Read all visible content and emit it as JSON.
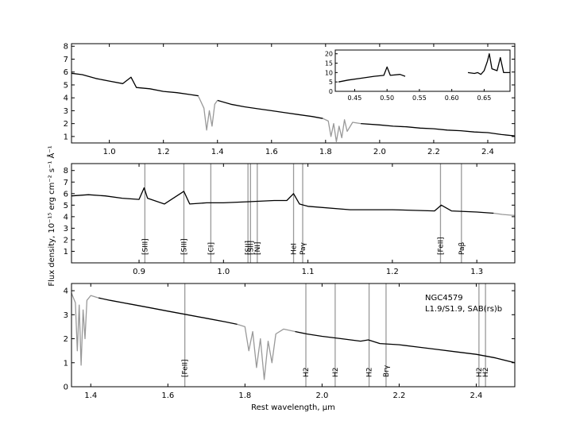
{
  "chart_data": [
    {
      "type": "line",
      "panel": "top",
      "xlim": [
        0.86,
        2.5
      ],
      "ylim": [
        0.5,
        8.2
      ],
      "xticks": [
        "1.0",
        "1.2",
        "1.4",
        "1.6",
        "1.8",
        "2.0",
        "2.2",
        "2.4"
      ],
      "yticks": [
        "1",
        "2",
        "3",
        "4",
        "5",
        "6",
        "7",
        "8"
      ],
      "series": [
        {
          "color": "#000000",
          "segments": [
            {
              "x": [
                0.86,
                0.9,
                0.95,
                1.0,
                1.05,
                1.08,
                1.1,
                1.15,
                1.2,
                1.25,
                1.3,
                1.33
              ],
              "y": [
                5.9,
                5.8,
                5.5,
                5.3,
                5.1,
                5.6,
                4.8,
                4.7,
                4.5,
                4.4,
                4.25,
                4.15
              ]
            },
            {
              "x": [
                1.4,
                1.45,
                1.5,
                1.55,
                1.6,
                1.65,
                1.7,
                1.75,
                1.79
              ],
              "y": [
                3.8,
                3.5,
                3.3,
                3.15,
                3.0,
                2.85,
                2.7,
                2.55,
                2.4
              ]
            },
            {
              "x": [
                1.93,
                2.0,
                2.05,
                2.1,
                2.15,
                2.2,
                2.25,
                2.3,
                2.35,
                2.4,
                2.45,
                2.5
              ],
              "y": [
                2.0,
                1.9,
                1.8,
                1.75,
                1.65,
                1.6,
                1.5,
                1.45,
                1.35,
                1.3,
                1.15,
                1.05
              ]
            }
          ]
        },
        {
          "color": "#999999",
          "segments": [
            {
              "x": [
                1.33,
                1.35,
                1.36,
                1.37,
                1.38,
                1.39,
                1.4
              ],
              "y": [
                4.1,
                3.2,
                1.5,
                3.0,
                1.8,
                3.5,
                3.8
              ]
            },
            {
              "x": [
                1.79,
                1.81,
                1.82,
                1.83,
                1.84,
                1.85,
                1.86,
                1.87,
                1.88,
                1.9,
                1.93
              ],
              "y": [
                2.4,
                2.2,
                1.0,
                2.0,
                0.6,
                1.8,
                0.9,
                2.3,
                1.4,
                2.1,
                2.0
              ]
            }
          ]
        }
      ],
      "inset": {
        "xlim": [
          0.42,
          0.69
        ],
        "ylim": [
          0,
          22
        ],
        "xticks": [
          "0.45",
          "0.50",
          "0.55",
          "0.60",
          "0.65"
        ],
        "yticks": [
          "0",
          "5",
          "10",
          "15",
          "20"
        ],
        "segments": [
          {
            "x": [
              0.425,
              0.44,
              0.46,
              0.48,
              0.495,
              0.5,
              0.505,
              0.52,
              0.528
            ],
            "y": [
              5,
              6,
              7,
              8,
              8.5,
              13,
              8.5,
              9,
              8
            ]
          },
          {
            "x": [
              0.625,
              0.635,
              0.64,
              0.645,
              0.65,
              0.655,
              0.658,
              0.662,
              0.67,
              0.675,
              0.68,
              0.69
            ],
            "y": [
              10,
              9.5,
              10,
              9,
              11,
              16,
              20,
              12,
              11,
              18,
              10,
              10
            ]
          }
        ]
      }
    },
    {
      "type": "line",
      "panel": "middle",
      "xlim": [
        0.82,
        1.345
      ],
      "ylim": [
        0,
        8.6
      ],
      "xticks": [
        "0.9",
        "1.0",
        "1.1",
        "1.2",
        "1.3"
      ],
      "yticks": [
        "1",
        "2",
        "3",
        "4",
        "5",
        "6",
        "7",
        "8"
      ],
      "series": [
        {
          "color": "#000000",
          "segments": [
            {
              "x": [
                0.82,
                0.84,
                0.86,
                0.88,
                0.9,
                0.906,
                0.91,
                0.93,
                0.953,
                0.96,
                0.98,
                1.0,
                1.03,
                1.06,
                1.075,
                1.083,
                1.09,
                1.1,
                1.15,
                1.2,
                1.25,
                1.258,
                1.27,
                1.3,
                1.32
              ],
              "y": [
                5.8,
                5.9,
                5.8,
                5.6,
                5.5,
                6.5,
                5.6,
                5.1,
                6.2,
                5.1,
                5.2,
                5.2,
                5.3,
                5.4,
                5.4,
                6.0,
                5.1,
                4.9,
                4.6,
                4.6,
                4.5,
                5.0,
                4.5,
                4.4,
                4.3
              ]
            }
          ]
        },
        {
          "color": "#999999",
          "segments": [
            {
              "x": [
                1.32,
                1.33,
                1.345
              ],
              "y": [
                4.3,
                4.2,
                4.1
              ]
            }
          ]
        }
      ],
      "lines": [
        {
          "x": 0.9069,
          "label": "[SIII]"
        },
        {
          "x": 0.9531,
          "label": "[SIII]"
        },
        {
          "x": 0.985,
          "label": "[CI]"
        },
        {
          "x": 1.029,
          "label": "[SII]"
        },
        {
          "x": 1.032,
          "label": "[SII]"
        },
        {
          "x": 1.04,
          "label": "[NI]"
        },
        {
          "x": 1.083,
          "label": "HeI"
        },
        {
          "x": 1.0938,
          "label": "Paγ"
        },
        {
          "x": 1.257,
          "label": "[FeII]"
        },
        {
          "x": 1.2818,
          "label": "Paβ"
        }
      ]
    },
    {
      "type": "line",
      "panel": "bottom",
      "xlim": [
        1.35,
        2.5
      ],
      "ylim": [
        0,
        4.3
      ],
      "xticks": [
        "1.4",
        "1.6",
        "1.8",
        "2.0",
        "2.2",
        "2.4"
      ],
      "yticks": [
        "0",
        "1",
        "2",
        "3",
        "4"
      ],
      "series": [
        {
          "color": "#000000",
          "segments": [
            {
              "x": [
                1.42,
                1.45,
                1.5,
                1.55,
                1.6,
                1.65,
                1.7,
                1.75,
                1.78
              ],
              "y": [
                3.7,
                3.6,
                3.45,
                3.3,
                3.15,
                3.0,
                2.85,
                2.7,
                2.6
              ]
            },
            {
              "x": [
                1.93,
                1.96,
                2.0,
                2.05,
                2.1,
                2.12,
                2.15,
                2.2,
                2.25,
                2.3,
                2.35,
                2.4,
                2.45,
                2.5
              ],
              "y": [
                2.3,
                2.2,
                2.1,
                2.0,
                1.9,
                1.95,
                1.8,
                1.75,
                1.65,
                1.55,
                1.45,
                1.35,
                1.2,
                1.0
              ]
            }
          ]
        },
        {
          "color": "#999999",
          "segments": [
            {
              "x": [
                1.35,
                1.36,
                1.365,
                1.37,
                1.375,
                1.38,
                1.385,
                1.39,
                1.4,
                1.42
              ],
              "y": [
                3.9,
                3.5,
                1.5,
                3.4,
                0.9,
                3.2,
                2.0,
                3.6,
                3.8,
                3.7
              ]
            },
            {
              "x": [
                1.78,
                1.8,
                1.81,
                1.82,
                1.83,
                1.84,
                1.85,
                1.86,
                1.87,
                1.88,
                1.9,
                1.93
              ],
              "y": [
                2.6,
                2.5,
                1.5,
                2.3,
                0.8,
                2.0,
                0.3,
                1.9,
                1.0,
                2.2,
                2.4,
                2.3
              ]
            }
          ]
        }
      ],
      "lines": [
        {
          "x": 1.644,
          "label": "[FeII]"
        },
        {
          "x": 1.958,
          "label": "H2"
        },
        {
          "x": 2.034,
          "label": "H2"
        },
        {
          "x": 2.122,
          "label": "H2"
        },
        {
          "x": 2.166,
          "label": "Brγ"
        },
        {
          "x": 2.407,
          "label": "H2"
        },
        {
          "x": 2.424,
          "label": "H2"
        }
      ],
      "annotation": [
        "NGC4579",
        "L1.9/S1.9,  SAB(rs)b"
      ]
    }
  ],
  "labels": {
    "ylabel": "Flux density, 10⁻¹⁵ erg cm⁻² s⁻¹ Å⁻¹",
    "xlabel": "Rest wavelength, μm"
  }
}
